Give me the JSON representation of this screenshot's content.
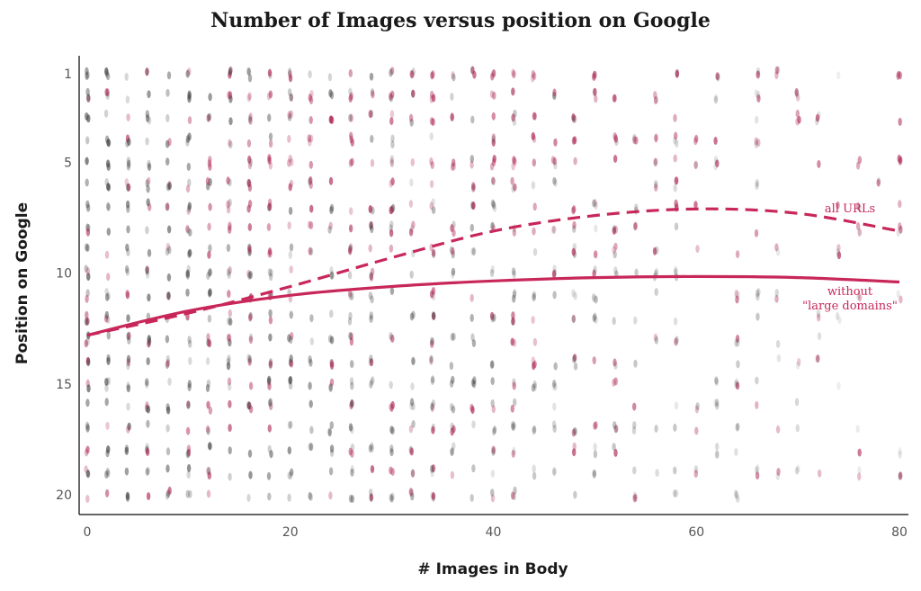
{
  "chart_data": {
    "type": "scatter",
    "title": "Number of Images versus position on Google",
    "xlabel": "# Images in Body",
    "ylabel": "Position on Google",
    "xlim": [
      0,
      80
    ],
    "ylim": [
      1,
      20
    ],
    "y_reversed": true,
    "xticks": [
      "0",
      "20",
      "40",
      "60",
      "80"
    ],
    "yticks": [
      "1",
      "5",
      "10",
      "15",
      "20"
    ],
    "grid": false,
    "colors": {
      "dark_points": "#444444",
      "pink_points": "#b0305c",
      "trend": "#c8275a"
    },
    "series": [
      {
        "name": "all URLs",
        "style": "dashed",
        "x": [
          0,
          10,
          20,
          30,
          40,
          50,
          60,
          70,
          80
        ],
        "y": [
          12.8,
          11.8,
          10.6,
          9.3,
          8.1,
          7.4,
          7.1,
          7.3,
          8.1
        ]
      },
      {
        "name": "without \"large domains\"",
        "style": "solid",
        "x": [
          0,
          10,
          20,
          30,
          40,
          50,
          60,
          70,
          80
        ],
        "y": [
          12.8,
          11.7,
          11.0,
          10.6,
          10.35,
          10.2,
          10.15,
          10.2,
          10.4
        ]
      }
    ],
    "annotations": [
      {
        "lines": [
          "all URLs"
        ],
        "series": "all URLs"
      },
      {
        "lines": [
          "without",
          "\"large domains\""
        ],
        "series": "without \"large domains\""
      }
    ],
    "scatter_points": {
      "x_range": [
        0,
        80
      ],
      "y_positions": [
        1,
        20
      ],
      "x_step": 2,
      "description_of_density": "dense near low x, fading at higher x"
    }
  }
}
